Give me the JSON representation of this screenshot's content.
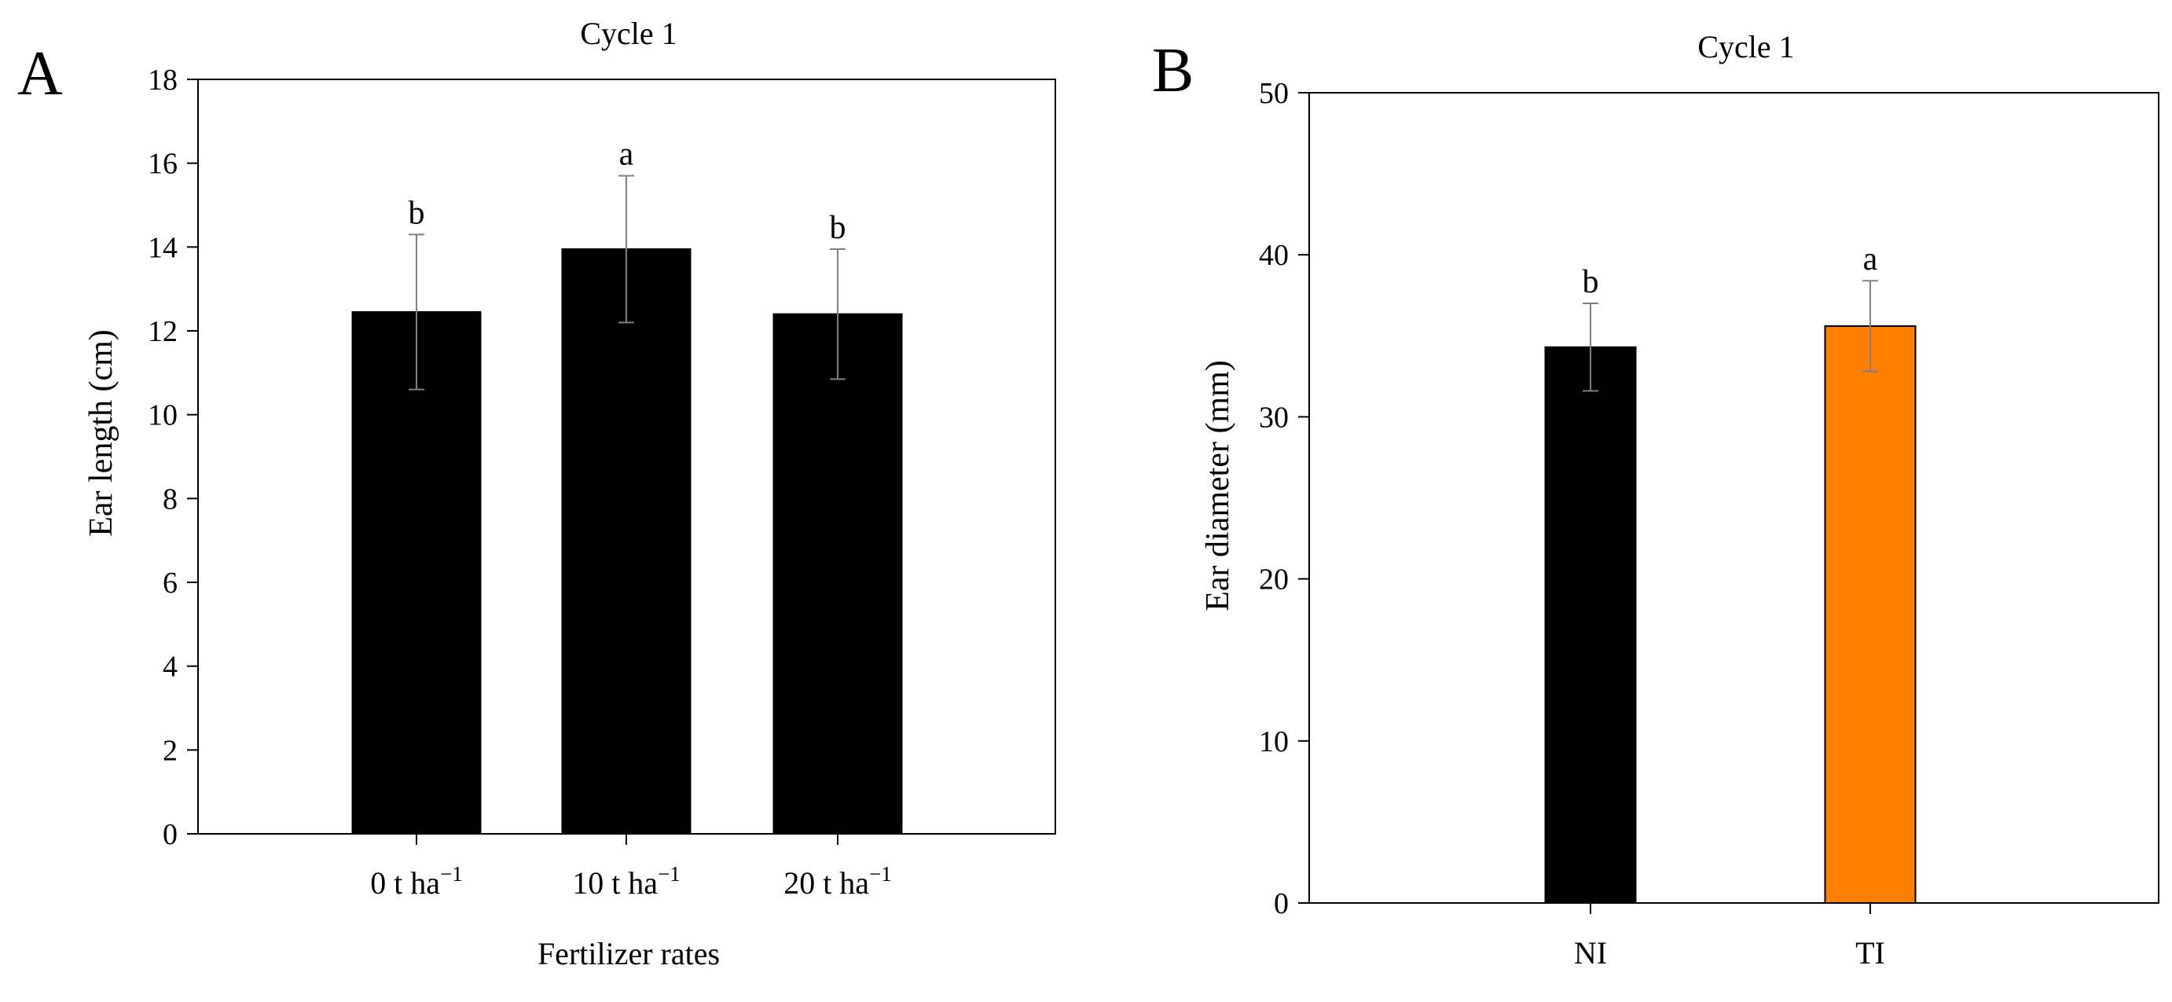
{
  "chart_data": [
    {
      "panel_label": "A",
      "type": "bar",
      "title": "Cycle 1",
      "xlabel": "Fertilizer rates",
      "ylabel": "Ear length (cm)",
      "ylim": [
        0,
        18
      ],
      "yticks": [
        0,
        2,
        4,
        6,
        8,
        10,
        12,
        14,
        16,
        18
      ],
      "categories": [
        {
          "base": "0 t ha",
          "sup": "−1"
        },
        {
          "base": "10 t ha",
          "sup": "−1"
        },
        {
          "base": "20 t ha",
          "sup": "−1"
        }
      ],
      "values": [
        12.45,
        13.95,
        12.4
      ],
      "errors": [
        1.85,
        1.75,
        1.55
      ],
      "letters": [
        "b",
        "a",
        "b"
      ],
      "colors": [
        "#000000",
        "#000000",
        "#000000"
      ]
    },
    {
      "panel_label": "B",
      "type": "bar",
      "title": "Cycle 1",
      "xlabel": "",
      "ylabel": "Ear diameter (mm)",
      "ylim": [
        0,
        50
      ],
      "yticks": [
        0,
        10,
        20,
        30,
        40,
        50
      ],
      "categories": [
        {
          "base": "NI",
          "sup": ""
        },
        {
          "base": "TI",
          "sup": ""
        }
      ],
      "values": [
        34.3,
        35.6
      ],
      "errors": [
        2.7,
        2.8
      ],
      "letters": [
        "b",
        "a"
      ],
      "colors": [
        "#000000",
        "#ff8000"
      ]
    }
  ]
}
